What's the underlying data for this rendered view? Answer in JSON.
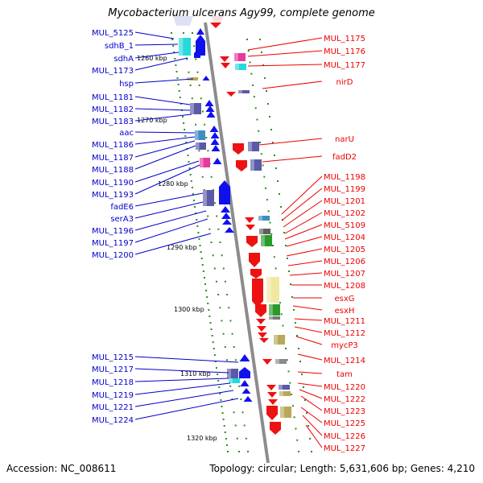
{
  "title": "Mycobacterium ulcerans Agy99, complete genome",
  "accession_text": "Accession: NC_008611",
  "summary_text": "Topology: circular; Length: 5,631,606 bp; Genes: 4,210",
  "colors": {
    "backbone": "#999999",
    "tick": "#2e8b22",
    "left_label": "#0000cc",
    "right_label": "#ee0000",
    "left_feature": "#1010ee",
    "right_feature": "#ee1111",
    "cog_cyan": "#26d9dd",
    "cog_magenta": "#e8389a",
    "cog_slate": "#5a5aa8",
    "cog_teal": "#3e8ec0",
    "cog_olive": "#b8a85a",
    "cog_green": "#2a9a2a",
    "cog_pale_yellow": "#f0e8a0",
    "cog_grey": "#888888"
  },
  "scale_labels": [
    "1260 kbp",
    "1270 kbp",
    "1280 kbp",
    "1290 kbp",
    "1300 kbp",
    "1310 kbp",
    "1320 kbp"
  ],
  "left_genes": [
    "MUL_5125",
    "sdhB_1",
    "sdhA",
    "MUL_1173",
    "hsp",
    "MUL_1181",
    "MUL_1182",
    "MUL_1183",
    "aac",
    "MUL_1186",
    "MUL_1187",
    "MUL_1188",
    "MUL_1190",
    "MUL_1193",
    "fadE6",
    "serA3",
    "MUL_1196",
    "MUL_1197",
    "MUL_1200",
    "MUL_1215",
    "MUL_1217",
    "MUL_1218",
    "MUL_1219",
    "MUL_1221",
    "MUL_1224"
  ],
  "right_genes": [
    "MUL_1175",
    "MUL_1176",
    "MUL_1177",
    "nirD",
    "narU",
    "fadD2",
    "MUL_1198",
    "MUL_1199",
    "MUL_1201",
    "MUL_1202",
    "MUL_5109",
    "MUL_1204",
    "MUL_1205",
    "MUL_1206",
    "MUL_1207",
    "MUL_1208",
    "esxG",
    "esxH",
    "MUL_1211",
    "MUL_1212",
    "mycP3",
    "MUL_1214",
    "tam",
    "MUL_1220",
    "MUL_1222",
    "MUL_1223",
    "MUL_1225",
    "MUL_1226",
    "MUL_1227"
  ]
}
